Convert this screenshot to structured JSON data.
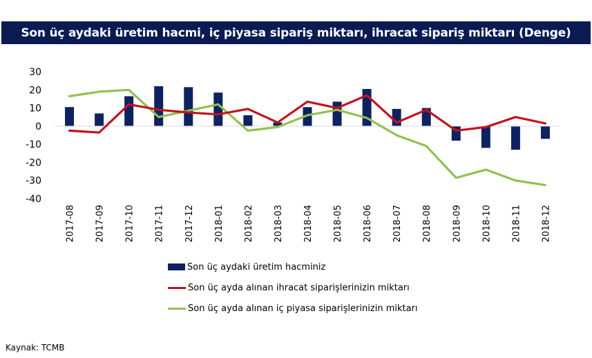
{
  "title": "Son üç aydaki üretim hacmi, iç piyasa sipariş miktarı, ihracat sipariş miktarı (Denge)",
  "source": "Kaynak: TCMB",
  "colors": {
    "title_bg": "#0a1a52",
    "bar": "#0f2260",
    "line_export": "#c0141e",
    "line_domestic": "#92c050"
  },
  "chart_data": {
    "type": "bar+line",
    "categories": [
      "2017-08",
      "2017-09",
      "2017-10",
      "2017-11",
      "2017-12",
      "2018-01",
      "2018-02",
      "2018-03",
      "2018-04",
      "2018-05",
      "2018-06",
      "2018-07",
      "2018-08",
      "2018-09",
      "2018-10",
      "2018-11",
      "2018-12"
    ],
    "ylim": [
      -40,
      30
    ],
    "yticks": [
      30,
      20,
      10,
      0,
      -10,
      -20,
      -30,
      -40
    ],
    "series": [
      {
        "name": "Son üç aydaki üretim hacminiz",
        "type": "bar",
        "values": [
          10.5,
          7,
          16.5,
          22,
          21.5,
          18.5,
          6,
          2,
          10.5,
          13.5,
          20.5,
          9.5,
          10,
          -8,
          -12,
          -13,
          -7
        ]
      },
      {
        "name": "Son üç ayda alınan ihracat siparişlerinizin miktarı",
        "type": "line",
        "values": [
          -2.5,
          -3.5,
          12,
          9,
          7.5,
          6.5,
          9.5,
          2,
          13.5,
          10,
          17,
          2,
          9,
          -2.5,
          -0.5,
          5,
          1.5
        ]
      },
      {
        "name": "Son üç ayda alınan iç piyasa siparişlerinizin miktarı",
        "type": "line",
        "values": [
          16.5,
          19,
          20,
          5,
          8.5,
          12,
          -2.5,
          -0.5,
          6,
          9,
          4.5,
          -5,
          -11,
          -28.5,
          -24,
          -30,
          -32.5
        ]
      }
    ],
    "legend_position": "bottom",
    "grid": false
  }
}
